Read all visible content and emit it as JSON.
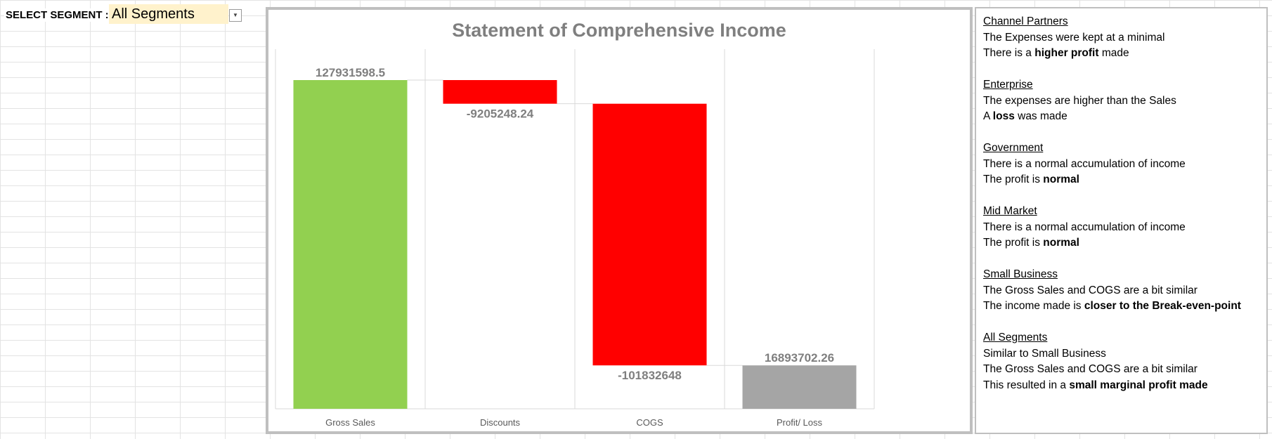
{
  "segment": {
    "label": "SELECT SEGMENT :",
    "selected": "All Segments"
  },
  "chart_data": {
    "type": "bar",
    "subtype": "waterfall",
    "title": "Statement of Comprehensive Income",
    "categories": [
      "Gross Sales",
      "Discounts",
      "COGS",
      "Profit/ Loss"
    ],
    "values": [
      127931598.5,
      -9205248.24,
      -101832648,
      16893702.26
    ],
    "data_labels": [
      "127931598.5",
      "-9205248.24",
      "-101832648",
      "16893702.26"
    ],
    "colors": [
      "#92d050",
      "#ff0000",
      "#ff0000",
      "#a5a5a5"
    ],
    "ylim": [
      0,
      127931598.5
    ],
    "grid": "vertical",
    "legend": "none"
  },
  "notes": [
    {
      "title": "Channel Partners",
      "lines": [
        [
          {
            "t": "The Expenses were kept at a minimal",
            "b": false
          }
        ],
        [
          {
            "t": "There is a ",
            "b": false
          },
          {
            "t": "higher profit",
            "b": true
          },
          {
            "t": " made",
            "b": false
          }
        ]
      ]
    },
    {
      "title": "Enterprise",
      "lines": [
        [
          {
            "t": "The expenses are higher than the Sales",
            "b": false
          }
        ],
        [
          {
            "t": "A ",
            "b": false
          },
          {
            "t": "loss",
            "b": true
          },
          {
            "t": " was made",
            "b": false
          }
        ]
      ]
    },
    {
      "title": "Government",
      "lines": [
        [
          {
            "t": "There is a normal accumulation of income",
            "b": false
          }
        ],
        [
          {
            "t": "The profit is ",
            "b": false
          },
          {
            "t": "normal",
            "b": true
          }
        ]
      ]
    },
    {
      "title": "Mid Market",
      "lines": [
        [
          {
            "t": "There is a normal accumulation of income",
            "b": false
          }
        ],
        [
          {
            "t": "The profit is ",
            "b": false
          },
          {
            "t": "normal",
            "b": true
          }
        ]
      ]
    },
    {
      "title": "Small Business",
      "lines": [
        [
          {
            "t": "The Gross Sales and COGS are a bit similar",
            "b": false
          }
        ],
        [
          {
            "t": "The income made is ",
            "b": false
          },
          {
            "t": "closer to the Break-even-point",
            "b": true
          }
        ]
      ]
    },
    {
      "title": "All Segments",
      "lines": [
        [
          {
            "t": "Similar to Small Business",
            "b": false
          }
        ],
        [
          {
            "t": "The Gross Sales and COGS are a bit similar",
            "b": false
          }
        ],
        [
          {
            "t": "This resulted in a ",
            "b": false
          },
          {
            "t": "small marginal profit made",
            "b": true
          }
        ]
      ]
    }
  ]
}
